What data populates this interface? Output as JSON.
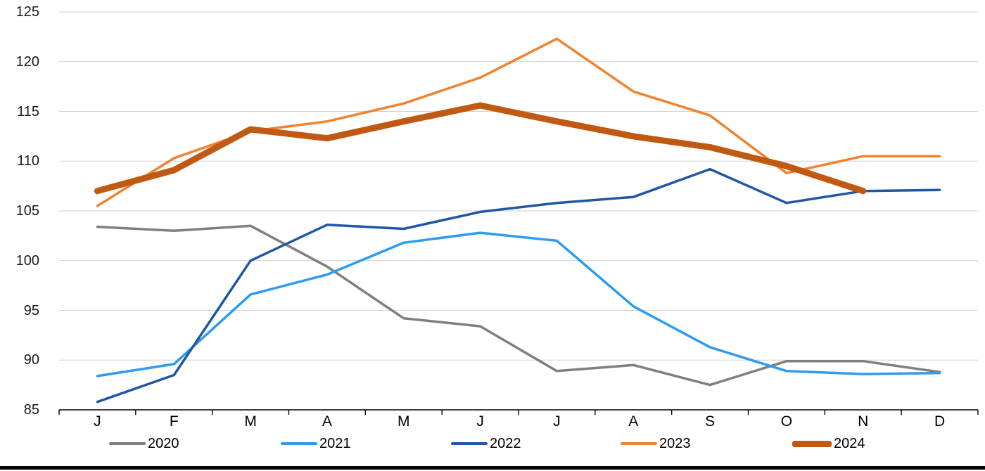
{
  "chart_data": {
    "type": "line",
    "title": "",
    "xlabel": "",
    "ylabel": "",
    "categories": [
      "J",
      "F",
      "M",
      "A",
      "M",
      "J",
      "J",
      "A",
      "S",
      "O",
      "N",
      "D"
    ],
    "yticks": [
      125,
      120,
      115,
      110,
      105,
      100,
      95,
      90,
      85
    ],
    "ylim": [
      85,
      125
    ],
    "grid": true,
    "legend_position": "bottom",
    "axis_color": "#000000",
    "gridline_color": "#d2d2d2",
    "series": [
      {
        "name": "2020",
        "color": "#7f7f7f",
        "stroke_width": 3.5,
        "values": [
          103.4,
          103.0,
          103.5,
          99.4,
          94.2,
          93.4,
          88.9,
          89.5,
          87.5,
          89.9,
          89.9,
          88.8
        ]
      },
      {
        "name": "2021",
        "color": "#2e9bef",
        "stroke_width": 3.5,
        "values": [
          88.4,
          89.6,
          96.6,
          98.6,
          101.8,
          102.8,
          102.0,
          95.4,
          91.3,
          88.9,
          88.6,
          88.7
        ]
      },
      {
        "name": "2022",
        "color": "#1f57a5",
        "stroke_width": 3.5,
        "values": [
          85.8,
          88.5,
          100.0,
          103.6,
          103.2,
          104.9,
          105.8,
          106.4,
          109.2,
          105.8,
          107.0,
          107.1
        ]
      },
      {
        "name": "2023",
        "color": "#f28230",
        "stroke_width": 3.5,
        "values": [
          105.5,
          110.3,
          113.0,
          114.0,
          115.8,
          118.4,
          122.3,
          117.0,
          114.6,
          108.8,
          110.5,
          110.5
        ]
      },
      {
        "name": "2024",
        "color": "#c05a12",
        "stroke_width": 9,
        "values": [
          107.0,
          109.1,
          113.2,
          112.3,
          114.0,
          115.6,
          114.0,
          112.5,
          111.4,
          109.5,
          107.0,
          null
        ]
      }
    ]
  },
  "layout_note_visible_text_only": true
}
